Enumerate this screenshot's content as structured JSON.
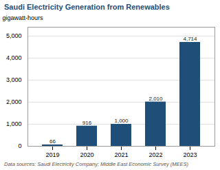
{
  "chart_data": {
    "type": "bar",
    "title": "Saudi Electricity Generation from Renewables",
    "categories": [
      "2019",
      "2020",
      "2021",
      "2022",
      "2023"
    ],
    "values": [
      66,
      916,
      1000,
      2010,
      4714
    ],
    "value_labels": [
      "66",
      "916",
      "1,000",
      "2,010",
      "4,714"
    ],
    "data_labels": true,
    "color": "#1f4e79",
    "ylabel": "gigawatt-hours",
    "footnote": "Data sources: Saudi Electricity Company; Middle East Economic Survey (MEES)",
    "ylim": [
      0,
      5400
    ],
    "yticks": [
      0,
      {
        "value": 1000,
        "label": "1,000"
      },
      {
        "value": 2000,
        "label": "2,000"
      },
      {
        "value": 3000,
        "label": "3,000"
      },
      {
        "value": 4000,
        "label": "4,000"
      },
      {
        "value": 5000,
        "label": "5,000"
      }
    ],
    "grid": true
  }
}
